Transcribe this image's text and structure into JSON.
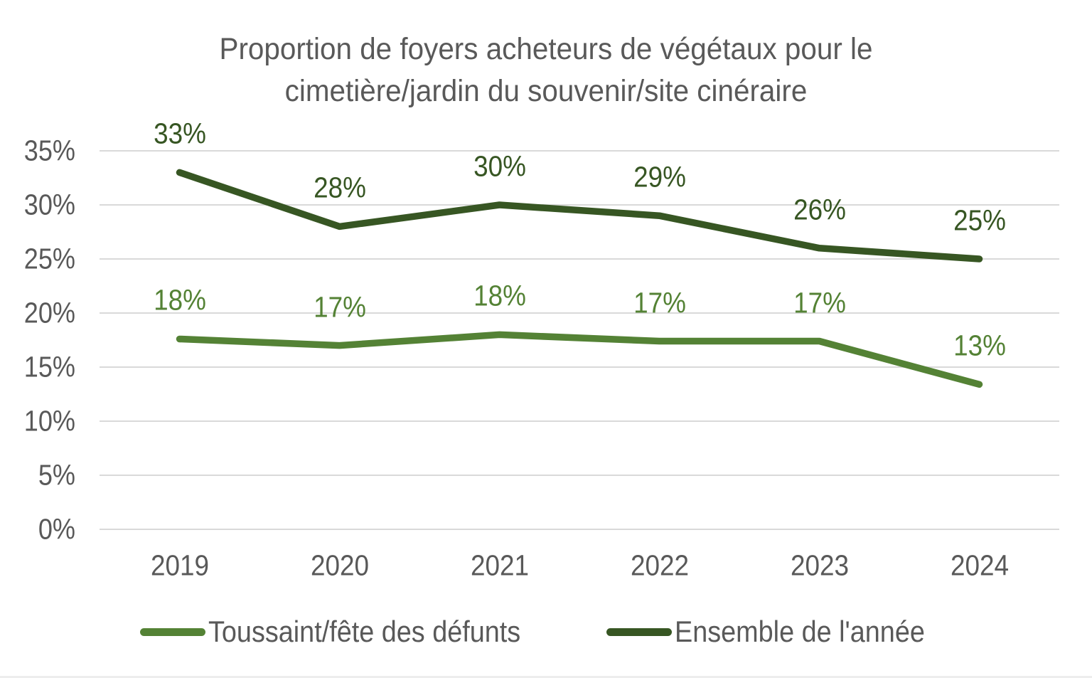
{
  "title": {
    "line1": "Proportion de foyers acheteurs de végétaux pour le",
    "line2": "cimetière/jardin du souvenir/site cinéraire"
  },
  "colors": {
    "background": "#ffffff",
    "axis_text": "#595959",
    "title_text": "#595959",
    "gridline": "#d9d9d9",
    "series_light_green": "#548235",
    "series_dark_green": "#375623"
  },
  "chart_data": {
    "type": "line",
    "title": "Proportion de foyers acheteurs de végétaux pour le cimetière/jardin du souvenir/site cinéraire",
    "categories": [
      "2019",
      "2020",
      "2021",
      "2022",
      "2023",
      "2024"
    ],
    "series": [
      {
        "name": "Toussaint/fête des défunts",
        "color": "#548235",
        "values": [
          18,
          17,
          18,
          17,
          17,
          13
        ],
        "labels": [
          "18%",
          "17%",
          "18%",
          "17%",
          "17%",
          "13%"
        ],
        "plot_values": [
          17.6,
          17.0,
          18.0,
          17.4,
          17.4,
          13.4
        ]
      },
      {
        "name": "Ensemble de l'année",
        "color": "#375623",
        "values": [
          33,
          28,
          30,
          29,
          26,
          25
        ],
        "labels": [
          "33%",
          "28%",
          "30%",
          "29%",
          "26%",
          "25%"
        ],
        "plot_values": [
          33,
          28,
          30,
          29,
          26,
          25
        ]
      }
    ],
    "y_axis": {
      "ticks": [
        "0%",
        "5%",
        "10%",
        "15%",
        "20%",
        "25%",
        "30%",
        "35%"
      ],
      "min": 0,
      "max": 35,
      "step": 5,
      "unit": "%"
    },
    "x_axis": {
      "label": ""
    },
    "grid": true,
    "gridlines": "horizontal",
    "legend_position": "bottom",
    "data_labels": "above-points"
  },
  "legend": {
    "items": [
      {
        "label": "Toussaint/fête des défunts",
        "color": "#548235"
      },
      {
        "label": "Ensemble de l'année",
        "color": "#375623"
      }
    ]
  }
}
